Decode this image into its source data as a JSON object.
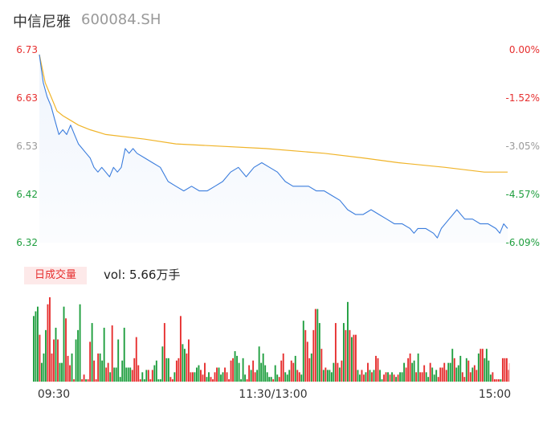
{
  "header": {
    "name": "中信尼雅",
    "code": "600084.SH"
  },
  "volume_panel": {
    "badge": "日成交量",
    "label": "vol: 5.66万手"
  },
  "colors": {
    "price": "#3b7ddd",
    "avg": "#f0b429",
    "up": "#e62e2e",
    "down": "#1e9e3e",
    "axis_text": "#333333"
  },
  "chart_data": [
    {
      "type": "line",
      "ylim": [
        6.32,
        6.73
      ],
      "y_ticks": [
        "6.73",
        "6.63",
        "6.53",
        "6.42",
        "6.32"
      ],
      "y_ticks_pct": [
        "0.00%",
        "-1.52%",
        "-3.05%",
        "-4.57%",
        "-6.09%"
      ],
      "x_ticks": [
        "09:30",
        "11:30/13:00",
        "15:00"
      ],
      "series": [
        {
          "key": "price",
          "points": [
            [
              0,
              6.72
            ],
            [
              2,
              6.66
            ],
            [
              4,
              6.63
            ],
            [
              6,
              6.61
            ],
            [
              8,
              6.58
            ],
            [
              10,
              6.55
            ],
            [
              12,
              6.56
            ],
            [
              14,
              6.55
            ],
            [
              16,
              6.57
            ],
            [
              18,
              6.55
            ],
            [
              20,
              6.53
            ],
            [
              22,
              6.52
            ],
            [
              24,
              6.51
            ],
            [
              26,
              6.5
            ],
            [
              28,
              6.48
            ],
            [
              30,
              6.47
            ],
            [
              32,
              6.48
            ],
            [
              34,
              6.47
            ],
            [
              36,
              6.46
            ],
            [
              38,
              6.48
            ],
            [
              40,
              6.47
            ],
            [
              42,
              6.48
            ],
            [
              44,
              6.52
            ],
            [
              46,
              6.51
            ],
            [
              48,
              6.52
            ],
            [
              50,
              6.51
            ],
            [
              54,
              6.5
            ],
            [
              58,
              6.49
            ],
            [
              62,
              6.48
            ],
            [
              66,
              6.45
            ],
            [
              70,
              6.44
            ],
            [
              74,
              6.43
            ],
            [
              78,
              6.44
            ],
            [
              82,
              6.43
            ],
            [
              86,
              6.43
            ],
            [
              90,
              6.44
            ],
            [
              94,
              6.45
            ],
            [
              98,
              6.47
            ],
            [
              102,
              6.48
            ],
            [
              106,
              6.46
            ],
            [
              110,
              6.48
            ],
            [
              114,
              6.49
            ],
            [
              118,
              6.48
            ],
            [
              122,
              6.47
            ],
            [
              126,
              6.45
            ],
            [
              130,
              6.44
            ],
            [
              134,
              6.44
            ],
            [
              138,
              6.44
            ],
            [
              142,
              6.43
            ],
            [
              146,
              6.43
            ],
            [
              150,
              6.42
            ],
            [
              154,
              6.41
            ],
            [
              158,
              6.39
            ],
            [
              162,
              6.38
            ],
            [
              166,
              6.38
            ],
            [
              170,
              6.39
            ],
            [
              174,
              6.38
            ],
            [
              178,
              6.37
            ],
            [
              182,
              6.36
            ],
            [
              186,
              6.36
            ],
            [
              190,
              6.35
            ],
            [
              192,
              6.34
            ],
            [
              194,
              6.35
            ],
            [
              198,
              6.35
            ],
            [
              202,
              6.34
            ],
            [
              204,
              6.33
            ],
            [
              206,
              6.35
            ],
            [
              210,
              6.37
            ],
            [
              212,
              6.38
            ],
            [
              214,
              6.39
            ],
            [
              218,
              6.37
            ],
            [
              222,
              6.37
            ],
            [
              226,
              6.36
            ],
            [
              230,
              6.36
            ],
            [
              234,
              6.35
            ],
            [
              236,
              6.34
            ],
            [
              238,
              6.36
            ],
            [
              240,
              6.35
            ]
          ]
        },
        {
          "key": "avg",
          "points": [
            [
              0,
              6.72
            ],
            [
              3,
              6.66
            ],
            [
              6,
              6.63
            ],
            [
              9,
              6.6
            ],
            [
              12,
              6.59
            ],
            [
              16,
              6.58
            ],
            [
              20,
              6.57
            ],
            [
              26,
              6.56
            ],
            [
              34,
              6.55
            ],
            [
              54,
              6.54
            ],
            [
              70,
              6.53
            ],
            [
              116,
              6.52
            ],
            [
              146,
              6.51
            ],
            [
              166,
              6.5
            ],
            [
              184,
              6.49
            ],
            [
              208,
              6.48
            ],
            [
              228,
              6.47
            ],
            [
              240,
              6.47
            ]
          ]
        }
      ]
    },
    {
      "type": "bar",
      "title": "日成交量",
      "unit": "万手",
      "values": [
        [
          28,
          "down"
        ],
        [
          30,
          "down"
        ],
        [
          32,
          "down"
        ],
        [
          20,
          "up"
        ],
        [
          8,
          "down"
        ],
        [
          12,
          "down"
        ],
        [
          22,
          "down"
        ],
        [
          33,
          "up"
        ],
        [
          36,
          "up"
        ],
        [
          12,
          "up"
        ],
        [
          18,
          "up"
        ],
        [
          23,
          "down"
        ],
        [
          18,
          "up"
        ],
        [
          8,
          "down"
        ],
        [
          8,
          "down"
        ],
        [
          32,
          "down"
        ],
        [
          27,
          "up"
        ],
        [
          11,
          "up"
        ],
        [
          7,
          "up"
        ],
        [
          12,
          "down"
        ],
        [
          1,
          "up"
        ],
        [
          18,
          "down"
        ],
        [
          22,
          "down"
        ],
        [
          33,
          "down"
        ],
        [
          1,
          "up"
        ],
        [
          3,
          "up"
        ],
        [
          1,
          "down"
        ],
        [
          1,
          "up"
        ],
        [
          17,
          "up"
        ],
        [
          25,
          "down"
        ],
        [
          9,
          "up"
        ],
        [
          1,
          "up"
        ],
        [
          12,
          "up"
        ],
        [
          12,
          "down"
        ],
        [
          9,
          "down"
        ],
        [
          23,
          "down"
        ],
        [
          6,
          "up"
        ],
        [
          8,
          "up"
        ],
        [
          4,
          "down"
        ],
        [
          24,
          "up"
        ],
        [
          6,
          "down"
        ],
        [
          6,
          "down"
        ],
        [
          18,
          "down"
        ],
        [
          2,
          "down"
        ],
        [
          9,
          "down"
        ],
        [
          23,
          "down"
        ],
        [
          6,
          "down"
        ],
        [
          6,
          "down"
        ],
        [
          6,
          "down"
        ],
        [
          5,
          "up"
        ],
        [
          10,
          "up"
        ],
        [
          19,
          "up"
        ],
        [
          7,
          "up"
        ],
        [
          1,
          "up"
        ],
        [
          4,
          "down"
        ],
        [
          1,
          "down"
        ],
        [
          5,
          "down"
        ],
        [
          5,
          "up"
        ],
        [
          1,
          "up"
        ],
        [
          5,
          "up"
        ],
        [
          7,
          "down"
        ],
        [
          9,
          "down"
        ],
        [
          1,
          "down"
        ],
        [
          1,
          "down"
        ],
        [
          15,
          "down"
        ],
        [
          25,
          "up"
        ],
        [
          10,
          "down"
        ],
        [
          10,
          "down"
        ],
        [
          2,
          "up"
        ],
        [
          1,
          "up"
        ],
        [
          4,
          "down"
        ],
        [
          9,
          "up"
        ],
        [
          10,
          "up"
        ],
        [
          28,
          "up"
        ],
        [
          16,
          "down"
        ],
        [
          14,
          "down"
        ],
        [
          12,
          "up"
        ],
        [
          18,
          "up"
        ],
        [
          4,
          "up"
        ],
        [
          4,
          "up"
        ],
        [
          4,
          "down"
        ],
        [
          6,
          "down"
        ],
        [
          7,
          "down"
        ],
        [
          5,
          "up"
        ],
        [
          3,
          "up"
        ],
        [
          8,
          "up"
        ],
        [
          2,
          "down"
        ],
        [
          4,
          "down"
        ],
        [
          2,
          "up"
        ],
        [
          1,
          "up"
        ],
        [
          4,
          "up"
        ],
        [
          6,
          "up"
        ],
        [
          6,
          "down"
        ],
        [
          3,
          "down"
        ],
        [
          4,
          "down"
        ],
        [
          6,
          "up"
        ],
        [
          4,
          "up"
        ],
        [
          1,
          "up"
        ],
        [
          9,
          "up"
        ],
        [
          10,
          "up"
        ],
        [
          13,
          "down"
        ],
        [
          11,
          "down"
        ],
        [
          8,
          "down"
        ],
        [
          1,
          "down"
        ],
        [
          10,
          "down"
        ],
        [
          3,
          "down"
        ],
        [
          1,
          "up"
        ],
        [
          7,
          "up"
        ],
        [
          5,
          "down"
        ],
        [
          9,
          "up"
        ],
        [
          4,
          "up"
        ],
        [
          5,
          "down"
        ],
        [
          15,
          "down"
        ],
        [
          8,
          "down"
        ],
        [
          12,
          "down"
        ],
        [
          7,
          "down"
        ],
        [
          4,
          "down"
        ],
        [
          2,
          "down"
        ],
        [
          2,
          "down"
        ],
        [
          1,
          "up"
        ],
        [
          7,
          "down"
        ],
        [
          3,
          "down"
        ],
        [
          2,
          "up"
        ],
        [
          9,
          "up"
        ],
        [
          12,
          "up"
        ],
        [
          4,
          "down"
        ],
        [
          3,
          "down"
        ],
        [
          5,
          "down"
        ],
        [
          9,
          "up"
        ],
        [
          8,
          "up"
        ],
        [
          11,
          "down"
        ],
        [
          5,
          "up"
        ],
        [
          4,
          "up"
        ],
        [
          3,
          "down"
        ],
        [
          26,
          "down"
        ],
        [
          22,
          "up"
        ],
        [
          17,
          "up"
        ],
        [
          10,
          "up"
        ],
        [
          12,
          "down"
        ],
        [
          22,
          "up"
        ],
        [
          31,
          "up"
        ],
        [
          31,
          "down"
        ],
        [
          25,
          "down"
        ],
        [
          14,
          "up"
        ],
        [
          5,
          "down"
        ],
        [
          6,
          "up"
        ],
        [
          5,
          "down"
        ],
        [
          5,
          "down"
        ],
        [
          4,
          "down"
        ],
        [
          8,
          "down"
        ],
        [
          25,
          "up"
        ],
        [
          8,
          "up"
        ],
        [
          6,
          "down"
        ],
        [
          9,
          "up"
        ],
        [
          25,
          "down"
        ],
        [
          22,
          "up"
        ],
        [
          34,
          "down"
        ],
        [
          22,
          "up"
        ],
        [
          19,
          "down"
        ],
        [
          20,
          "up"
        ],
        [
          20,
          "up"
        ],
        [
          5,
          "down"
        ],
        [
          3,
          "down"
        ],
        [
          5,
          "up"
        ],
        [
          3,
          "up"
        ],
        [
          4,
          "down"
        ],
        [
          8,
          "up"
        ],
        [
          5,
          "down"
        ],
        [
          4,
          "up"
        ],
        [
          5,
          "down"
        ],
        [
          11,
          "up"
        ],
        [
          10,
          "up"
        ],
        [
          5,
          "down"
        ],
        [
          1,
          "down"
        ],
        [
          3,
          "up"
        ],
        [
          4,
          "up"
        ],
        [
          4,
          "down"
        ],
        [
          3,
          "up"
        ],
        [
          4,
          "down"
        ],
        [
          3,
          "up"
        ],
        [
          2,
          "down"
        ],
        [
          3,
          "up"
        ],
        [
          4,
          "down"
        ],
        [
          4,
          "down"
        ],
        [
          8,
          "down"
        ],
        [
          6,
          "up"
        ],
        [
          10,
          "up"
        ],
        [
          12,
          "up"
        ],
        [
          8,
          "down"
        ],
        [
          9,
          "down"
        ],
        [
          4,
          "up"
        ],
        [
          12,
          "down"
        ],
        [
          4,
          "up"
        ],
        [
          4,
          "up"
        ],
        [
          7,
          "up"
        ],
        [
          4,
          "down"
        ],
        [
          2,
          "down"
        ],
        [
          8,
          "up"
        ],
        [
          6,
          "down"
        ],
        [
          3,
          "down"
        ],
        [
          5,
          "down"
        ],
        [
          2,
          "up"
        ],
        [
          6,
          "up"
        ],
        [
          6,
          "up"
        ],
        [
          8,
          "up"
        ],
        [
          5,
          "up"
        ],
        [
          8,
          "down"
        ],
        [
          8,
          "down"
        ],
        [
          14,
          "down"
        ],
        [
          10,
          "up"
        ],
        [
          6,
          "down"
        ],
        [
          7,
          "down"
        ],
        [
          11,
          "down"
        ],
        [
          4,
          "up"
        ],
        [
          2,
          "up"
        ],
        [
          10,
          "down"
        ],
        [
          9,
          "up"
        ],
        [
          4,
          "up"
        ],
        [
          6,
          "down"
        ],
        [
          7,
          "up"
        ],
        [
          5,
          "up"
        ],
        [
          12,
          "down"
        ],
        [
          14,
          "up"
        ],
        [
          14,
          "up"
        ],
        [
          10,
          "down"
        ],
        [
          14,
          "down"
        ],
        [
          9,
          "down"
        ],
        [
          3,
          "down"
        ],
        [
          4,
          "up"
        ],
        [
          1,
          "up"
        ],
        [
          1,
          "up"
        ],
        [
          1,
          "up"
        ],
        [
          1,
          "down"
        ],
        [
          10,
          "up"
        ],
        [
          10,
          "up"
        ],
        [
          10,
          "up"
        ],
        [
          5,
          "up"
        ]
      ]
    }
  ]
}
